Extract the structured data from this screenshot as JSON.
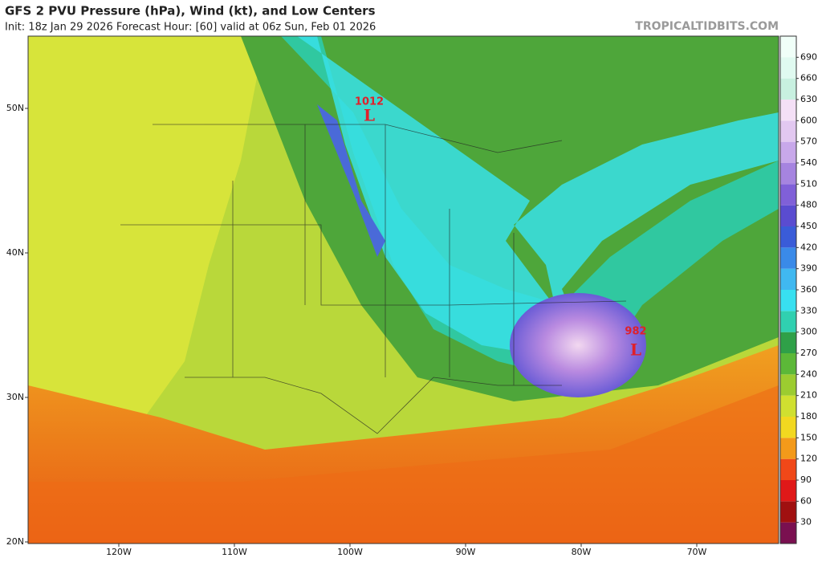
{
  "header": {
    "title": "GFS 2 PVU Pressure (hPa), Wind (kt), and Low Centers",
    "subtitle": "Init: 18z Jan 29 2026   Forecast Hour: [60]   valid at 06z Sun, Feb 01 2026",
    "watermark": "TROPICALTIDBITS.COM"
  },
  "lows": [
    {
      "pressure": "1012",
      "symbol": "L"
    },
    {
      "pressure": "982",
      "symbol": "L"
    }
  ],
  "latitude_labels": [
    "50N",
    "40N",
    "30N",
    "20N"
  ],
  "longitude_labels": [
    "120W",
    "110W",
    "100W",
    "90W",
    "80W",
    "70W"
  ],
  "colorbar": {
    "labels": [
      "30",
      "60",
      "90",
      "120",
      "150",
      "180",
      "210",
      "240",
      "270",
      "300",
      "330",
      "360",
      "390",
      "420",
      "450",
      "480",
      "510",
      "540",
      "570",
      "600",
      "630",
      "660",
      "690"
    ],
    "colors": [
      "#7a1050",
      "#a01010",
      "#e01818",
      "#f04818",
      "#f39a1a",
      "#f2d820",
      "#d0e030",
      "#9ccc30",
      "#5cb838",
      "#2fa048",
      "#30d0b0",
      "#38e0f0",
      "#40b8f0",
      "#3a8ae8",
      "#3a5cd8",
      "#5a4cd0",
      "#8060d8",
      "#a684e0",
      "#c8a8ea",
      "#e2c8f0",
      "#f4e0f6",
      "#c8f0e0",
      "#e0faf0"
    ]
  }
}
